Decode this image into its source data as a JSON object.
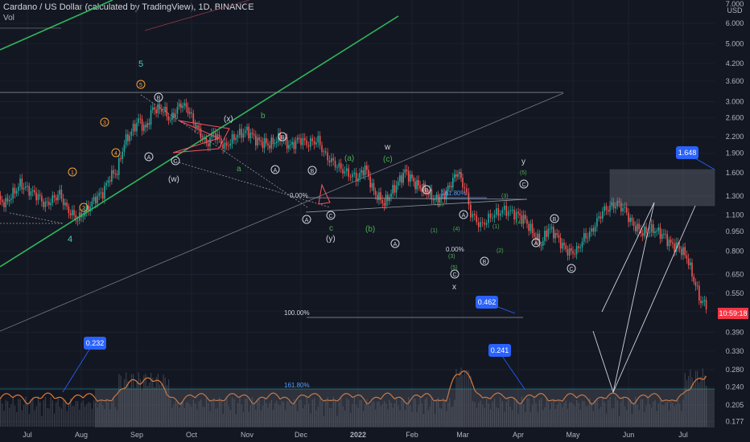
{
  "chart_header": {
    "title": "Cardano / US Dollar (calculated by TradingView), 1D, BINANCE",
    "sub_label": "Vol"
  },
  "chart_data": {
    "type": "candlestick",
    "title": "Cardano / US Dollar (calculated by TradingView), 1D, BINANCE",
    "y_axis": {
      "unit": "USD",
      "scale": "log",
      "position": "right",
      "ticks": [
        "7.000",
        "6.000",
        "5.000",
        "4.200",
        "3.600",
        "3.000",
        "2.600",
        "2.200",
        "1.900",
        "1.600",
        "1.300",
        "1.100",
        "0.950",
        "0.800",
        "0.650",
        "0.550",
        "0.470",
        "0.390",
        "0.330",
        "0.280",
        "0.240",
        "0.205",
        "0.177"
      ]
    },
    "x_axis": {
      "ticks": [
        "Jul",
        "Aug",
        "Sep",
        "Oct",
        "Nov",
        "Dec",
        "2022",
        "Feb",
        "Mar",
        "Apr",
        "May",
        "Jun",
        "Jul"
      ]
    },
    "current_price": {
      "label": "10:59:18",
      "color": "#f23645"
    },
    "callouts": [
      "0.232",
      "0.241",
      "0.462",
      "1.648"
    ],
    "fib_labels": [
      "161.80%",
      "161.80%",
      "100.00%",
      "0.00%",
      "0.00%"
    ],
    "wave_labels": {
      "orange_circled": [
        "1",
        "2",
        "3",
        "4",
        "5"
      ],
      "cyan": [
        "4",
        "5"
      ],
      "white_circled": [
        "A",
        "B",
        "C"
      ],
      "white_parens": [
        "(w)",
        "(x)",
        "(y)"
      ],
      "white": [
        "w",
        "x",
        "y"
      ],
      "green": [
        "a",
        "b",
        "c",
        "(a)",
        "(b)",
        "(c)"
      ],
      "green_sub": [
        "(1)",
        "(2)",
        "(3)",
        "(4)",
        "(5)"
      ]
    },
    "volume_indicator": {
      "name": "Vol",
      "line_color": "#e07a38",
      "bar_color": "#5d606b"
    },
    "colors": {
      "up": "#26a69a",
      "down": "#ef5350",
      "background": "#131722",
      "trend_green": "#2eb85c",
      "fib_line": "#5b9cf6",
      "callout": "#2962ff",
      "projection_box": "#787b86"
    }
  }
}
